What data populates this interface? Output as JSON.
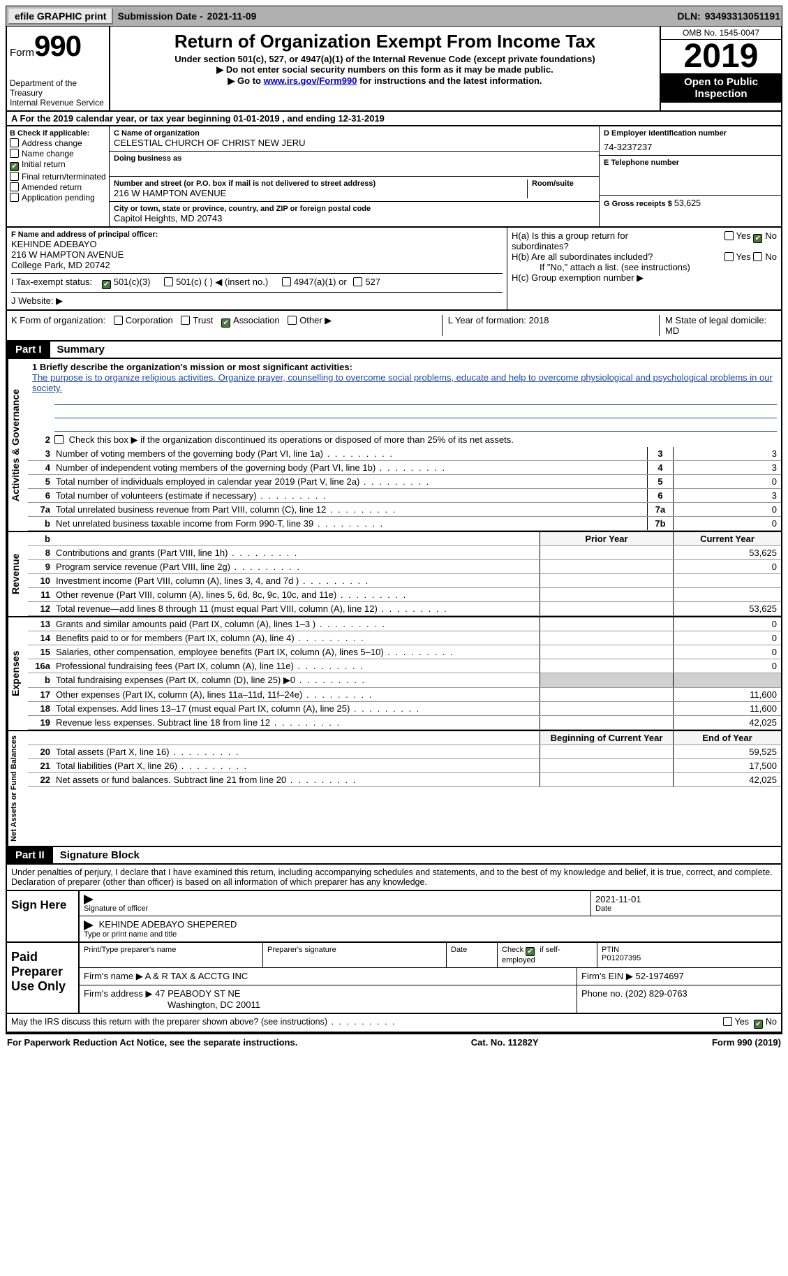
{
  "topbar": {
    "efile": "efile GRAPHIC print",
    "submission_label": "Submission Date - ",
    "submission_date": "2021-11-09",
    "dln_label": "DLN: ",
    "dln": "93493313051191"
  },
  "header": {
    "form_word": "Form",
    "form_num": "990",
    "dept": "Department of the Treasury\nInternal Revenue Service",
    "title": "Return of Organization Exempt From Income Tax",
    "sub1": "Under section 501(c), 527, or 4947(a)(1) of the Internal Revenue Code (except private foundations)",
    "sub2": "Do not enter social security numbers on this form as it may be made public.",
    "sub3_a": "Go to ",
    "sub3_link": "www.irs.gov/Form990",
    "sub3_b": " for instructions and the latest information.",
    "omb": "OMB No. 1545-0047",
    "year": "2019",
    "inspect": "Open to Public Inspection"
  },
  "rowA": "A For the 2019 calendar year, or tax year beginning 01-01-2019     , and ending 12-31-2019",
  "boxB": {
    "hdr": "B Check if applicable:",
    "addr": "Address change",
    "name": "Name change",
    "initial": "Initial return",
    "final": "Final return/terminated",
    "amended": "Amended return",
    "app": "Application pending"
  },
  "boxC": {
    "name_lbl": "C Name of organization",
    "name": "CELESTIAL CHURCH OF CHRIST NEW JERU",
    "dba_lbl": "Doing business as",
    "addr_lbl": "Number and street (or P.O. box if mail is not delivered to street address)",
    "room_lbl": "Room/suite",
    "addr": "216 W HAMPTON AVENUE",
    "city_lbl": "City or town, state or province, country, and ZIP or foreign postal code",
    "city": "Capitol Heights, MD  20743"
  },
  "boxD": {
    "lbl": "D Employer identification number",
    "val": "74-3237237"
  },
  "boxE": {
    "lbl": "E Telephone number",
    "val": ""
  },
  "boxG": {
    "lbl": "G Gross receipts $ ",
    "val": "53,625"
  },
  "boxF": {
    "lbl": "F  Name and address of principal officer:",
    "name": "KEHINDE ADEBAYO",
    "addr1": "216 W HAMPTON AVENUE",
    "addr2": "College Park, MD  20742"
  },
  "boxH": {
    "ha": "H(a)  Is this a group return for subordinates?",
    "hb": "H(b)  Are all subordinates included?",
    "hb_note": "If \"No,\" attach a list. (see instructions)",
    "hc": "H(c)  Group exemption number ▶",
    "yes": "Yes",
    "no": "No"
  },
  "rowI": {
    "lbl": "I    Tax-exempt status:",
    "o1": "501(c)(3)",
    "o2": "501(c) (  ) ◀ (insert no.)",
    "o3": "4947(a)(1) or",
    "o4": "527"
  },
  "rowJ": "J    Website: ▶",
  "rowK": {
    "lbl": "K Form of organization:",
    "o1": "Corporation",
    "o2": "Trust",
    "o3": "Association",
    "o4": "Other ▶"
  },
  "rowL": "L Year of formation: 2018",
  "rowM": "M State of legal domicile: MD",
  "part1": {
    "tag": "Part I",
    "title": "Summary"
  },
  "summary": {
    "l1_lbl": "1   Briefly describe the organization's mission or most significant activities:",
    "l1_txt": "The purpose is to organize religious activities. Organize prayer, counselling to overcome social problems, educate and help to overcome physiological and psychological problems in our society.",
    "l2": "Check this box ▶          if the organization discontinued its operations or disposed of more than 25% of its net assets.",
    "rows_gov": [
      {
        "n": "3",
        "lbl": "Number of voting members of the governing body (Part VI, line 1a)",
        "box": "3",
        "val": "3"
      },
      {
        "n": "4",
        "lbl": "Number of independent voting members of the governing body (Part VI, line 1b)",
        "box": "4",
        "val": "3"
      },
      {
        "n": "5",
        "lbl": "Total number of individuals employed in calendar year 2019 (Part V, line 2a)",
        "box": "5",
        "val": "0"
      },
      {
        "n": "6",
        "lbl": "Total number of volunteers (estimate if necessary)",
        "box": "6",
        "val": "3"
      },
      {
        "n": "7a",
        "lbl": "Total unrelated business revenue from Part VIII, column (C), line 12",
        "box": "7a",
        "val": "0"
      },
      {
        "n": "b",
        "lbl": "Net unrelated business taxable income from Form 990-T, line 39",
        "box": "7b",
        "val": "0"
      }
    ],
    "col_prior": "Prior Year",
    "col_curr": "Current Year",
    "col_boy": "Beginning of Current Year",
    "col_eoy": "End of Year",
    "rows_rev": [
      {
        "n": "8",
        "lbl": "Contributions and grants (Part VIII, line 1h)",
        "prior": "",
        "val": "53,625"
      },
      {
        "n": "9",
        "lbl": "Program service revenue (Part VIII, line 2g)",
        "prior": "",
        "val": "0"
      },
      {
        "n": "10",
        "lbl": "Investment income (Part VIII, column (A), lines 3, 4, and 7d )",
        "prior": "",
        "val": ""
      },
      {
        "n": "11",
        "lbl": "Other revenue (Part VIII, column (A), lines 5, 6d, 8c, 9c, 10c, and 11e)",
        "prior": "",
        "val": ""
      },
      {
        "n": "12",
        "lbl": "Total revenue—add lines 8 through 11 (must equal Part VIII, column (A), line 12)",
        "prior": "",
        "val": "53,625"
      }
    ],
    "rows_exp": [
      {
        "n": "13",
        "lbl": "Grants and similar amounts paid (Part IX, column (A), lines 1–3 )",
        "prior": "",
        "val": "0"
      },
      {
        "n": "14",
        "lbl": "Benefits paid to or for members (Part IX, column (A), line 4)",
        "prior": "",
        "val": "0"
      },
      {
        "n": "15",
        "lbl": "Salaries, other compensation, employee benefits (Part IX, column (A), lines 5–10)",
        "prior": "",
        "val": "0"
      },
      {
        "n": "16a",
        "lbl": "Professional fundraising fees (Part IX, column (A), line 11e)",
        "prior": "",
        "val": "0"
      },
      {
        "n": "b",
        "lbl": "Total fundraising expenses (Part IX, column (D), line 25) ▶0",
        "prior": "GREY",
        "val": "GREY"
      },
      {
        "n": "17",
        "lbl": "Other expenses (Part IX, column (A), lines 11a–11d, 11f–24e)",
        "prior": "",
        "val": "11,600"
      },
      {
        "n": "18",
        "lbl": "Total expenses. Add lines 13–17 (must equal Part IX, column (A), line 25)",
        "prior": "",
        "val": "11,600"
      },
      {
        "n": "19",
        "lbl": "Revenue less expenses. Subtract line 18 from line 12",
        "prior": "",
        "val": "42,025"
      }
    ],
    "rows_net": [
      {
        "n": "20",
        "lbl": "Total assets (Part X, line 16)",
        "prior": "",
        "val": "59,525"
      },
      {
        "n": "21",
        "lbl": "Total liabilities (Part X, line 26)",
        "prior": "",
        "val": "17,500"
      },
      {
        "n": "22",
        "lbl": "Net assets or fund balances. Subtract line 21 from line 20",
        "prior": "",
        "val": "42,025"
      }
    ],
    "vtab_gov": "Activities & Governance",
    "vtab_rev": "Revenue",
    "vtab_exp": "Expenses",
    "vtab_net": "Net Assets or Fund Balances"
  },
  "part2": {
    "tag": "Part II",
    "title": "Signature Block"
  },
  "penalties": "Under penalties of perjury, I declare that I have examined this return, including accompanying schedules and statements, and to the best of my knowledge and belief, it is true, correct, and complete. Declaration of preparer (other than officer) is based on all information of which preparer has any knowledge.",
  "sign": {
    "here": "Sign Here",
    "sig_lbl": "Signature of officer",
    "date_lbl": "Date",
    "date": "2021-11-01",
    "name": "KEHINDE ADEBAYO SHEPERED",
    "name_lbl": "Type or print name and title"
  },
  "paid": {
    "hdr": "Paid Preparer Use Only",
    "c1": "Print/Type preparer's name",
    "c2": "Preparer's signature",
    "c3": "Date",
    "c4a": "Check",
    "c4b": "if self-employed",
    "c5": "PTIN",
    "ptin": "P01207395",
    "firm_lbl": "Firm's name   ▶ ",
    "firm": "A & R TAX & ACCTG INC",
    "ein_lbl": "Firm's EIN ▶ ",
    "ein": "52-1974697",
    "addr_lbl": "Firm's address ▶ ",
    "addr1": "47 PEABODY ST NE",
    "addr2": "Washington, DC  20011",
    "phone_lbl": "Phone no. ",
    "phone": "(202) 829-0763"
  },
  "discuss": "May the IRS discuss this return with the preparer shown above? (see instructions)",
  "footer": {
    "pra": "For Paperwork Reduction Act Notice, see the separate instructions.",
    "cat": "Cat. No. 11282Y",
    "form": "Form 990 (2019)"
  }
}
